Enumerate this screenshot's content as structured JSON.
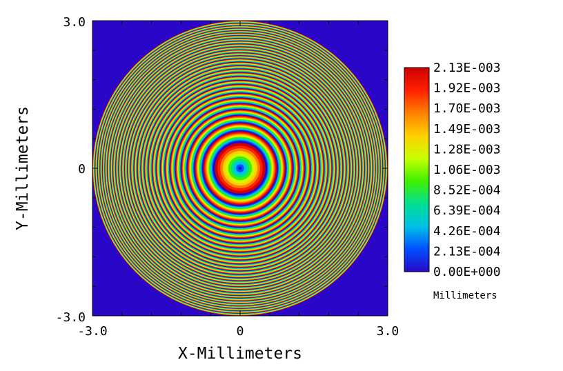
{
  "chart_data": {
    "type": "heatmap",
    "title": "",
    "xlabel": "X-Millimeters",
    "ylabel": "Y-Millimeters",
    "xlim": [
      -3.0,
      3.0
    ],
    "ylim": [
      -3.0,
      3.0
    ],
    "x_ticks": [
      "-3.0",
      "0",
      "3.0"
    ],
    "y_ticks": [
      "3.0",
      "0",
      "-3.0"
    ],
    "aperture_radius_mm": 3.0,
    "ring_radii_mm": [
      0.0,
      0.54,
      0.76,
      0.93,
      1.08,
      1.2,
      1.32,
      1.43,
      1.53,
      1.62,
      1.71,
      1.79,
      1.87,
      1.95,
      2.02,
      2.09,
      2.16,
      2.23,
      2.29,
      2.35,
      2.41,
      2.47,
      2.53,
      2.59,
      2.64,
      2.7,
      2.75,
      2.8,
      2.85,
      2.9,
      2.95,
      3.0
    ],
    "background_value": 0.0,
    "colorbar": {
      "min": 0.0,
      "max": 0.00213,
      "labels": [
        "2.13E-003",
        "1.92E-003",
        "1.70E-003",
        "1.49E-003",
        "1.28E-003",
        "1.06E-003",
        "8.52E-004",
        "6.39E-004",
        "4.26E-004",
        "2.13E-004",
        "0.00E+000"
      ],
      "unit": "Millimeters",
      "colormap": [
        "#2a06c8",
        "#0050ff",
        "#00c0e8",
        "#00e090",
        "#40f000",
        "#c8ff00",
        "#ffd000",
        "#ff8000",
        "#ff2000",
        "#cc0000"
      ]
    },
    "grid": false
  }
}
